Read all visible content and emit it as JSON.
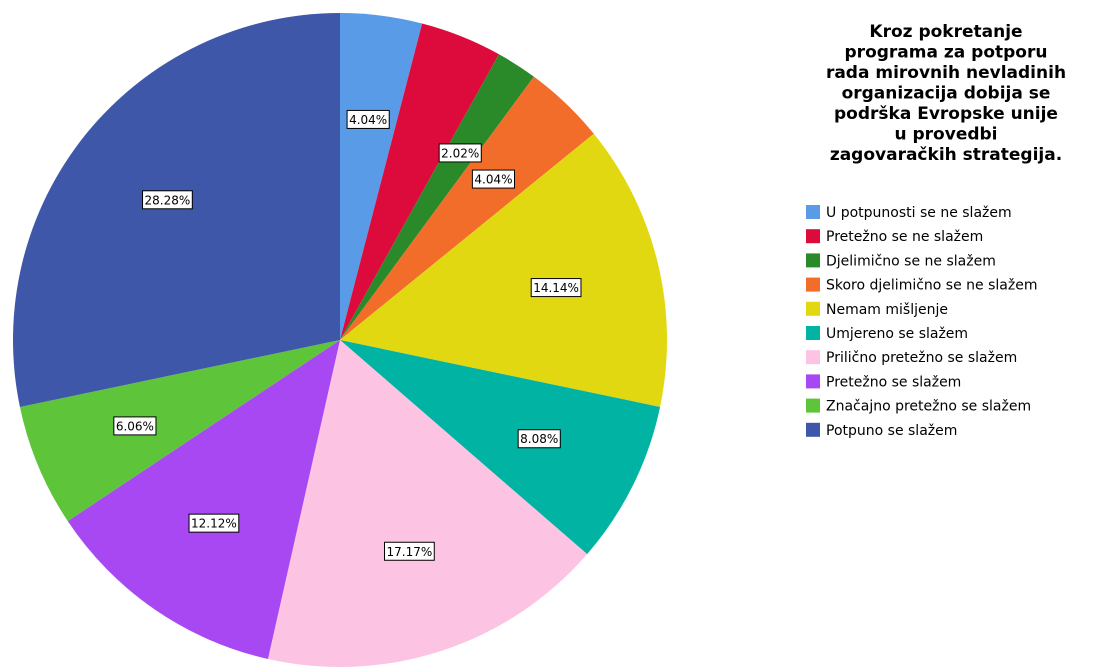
{
  "chart_data": {
    "type": "pie",
    "title": "Kroz pokretanje programa za potporu rada mirovnih nevladinih organizacija dobija se podrška Evropske unije u provedbi zagovaračkih strategija.",
    "title_lines": [
      "Kroz pokretanje",
      "programa za potporu",
      "rada mirovnih nevladinih",
      "organizacija dobija se",
      "podrška Evropske unije",
      "u provedbi",
      "zagovaračkih strategija."
    ],
    "categories": [
      "U potpunosti se ne slažem",
      "Pretežno se ne slažem",
      "Djelimično se ne slažem",
      "Skoro djelimično se ne slažem",
      "Nemam mišljenje",
      "Umjereno se slažem",
      "Prilično pretežno se slažem",
      "Pretežno se slažem",
      "Značajno pretežno se slažem",
      "Potpuno se slažem"
    ],
    "values": [
      4.04,
      4.04,
      2.02,
      4.04,
      14.14,
      8.08,
      17.17,
      12.12,
      6.06,
      28.28
    ],
    "value_labels": [
      "4.04%",
      null,
      "2.02%",
      "4.04%",
      "14.14%",
      "8.08%",
      "17.17%",
      "12.12%",
      "6.06%",
      "28.28%"
    ],
    "colors": [
      "#5a9be8",
      "#dd0b3c",
      "#2a8a2a",
      "#f26d2a",
      "#e2d811",
      "#00b3a3",
      "#fcc3e3",
      "#a848f2",
      "#5ec43a",
      "#3f57a8"
    ],
    "legend": "right"
  }
}
